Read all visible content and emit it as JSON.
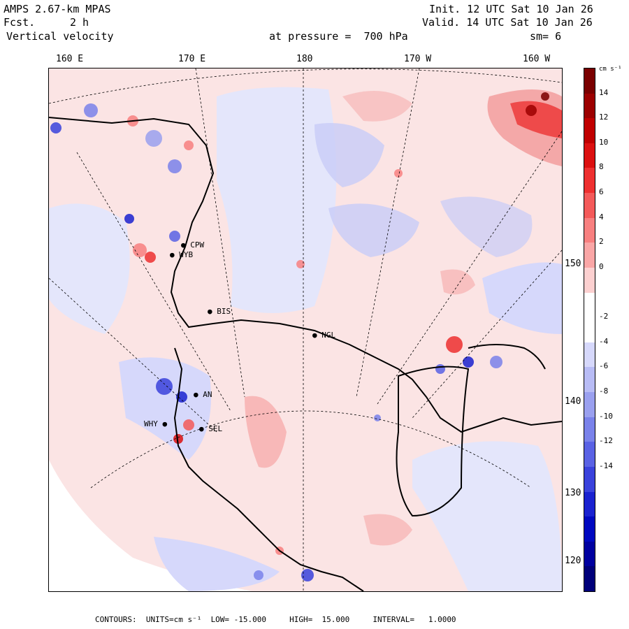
{
  "header": {
    "model": "AMPS 2.67-km MPAS",
    "fcst_label": "Fcst.",
    "fcst_value": "2 h",
    "field": "Vertical velocity",
    "init": "Init. 12 UTC Sat 10 Jan 26",
    "valid": "Valid. 14 UTC Sat 10 Jan 26",
    "level": "at pressure =  700 hPa",
    "smoothing": "sm= 6"
  },
  "lon_labels": [
    "160 E",
    "170 E",
    "180",
    "170 W",
    "160 W"
  ],
  "lat_labels": [
    "150 W",
    "140 W",
    "130 W",
    "120 W"
  ],
  "stations": [
    "CPW",
    "WYB",
    "BIS",
    "NGL",
    "AN",
    "SEL",
    "WHY"
  ],
  "colorbar": {
    "units": "cm s⁻¹",
    "ticks": [
      "14",
      "12",
      "10",
      "8",
      "6",
      "4",
      "2",
      "0",
      "-2",
      "-4",
      "-6",
      "-8",
      "-10",
      "-12",
      "-14"
    ],
    "colors": [
      "#7a0000",
      "#9c0000",
      "#c00000",
      "#dc1010",
      "#ee3030",
      "#f45a5a",
      "#f88080",
      "#faa6a6",
      "#fcd0d0",
      "#ffffff",
      "#ffffff",
      "#d6d8fb",
      "#b8bcf5",
      "#9aa0ef",
      "#7a82ea",
      "#5a62e4",
      "#3a42dc",
      "#1a22d0",
      "#0008c0",
      "#0000a0",
      "#00007a"
    ]
  },
  "footer": "CONTOURS:  UNITS=cm s⁻¹  LOW= -15.000     HIGH=  15.000     INTERVAL=   1.0000"
}
